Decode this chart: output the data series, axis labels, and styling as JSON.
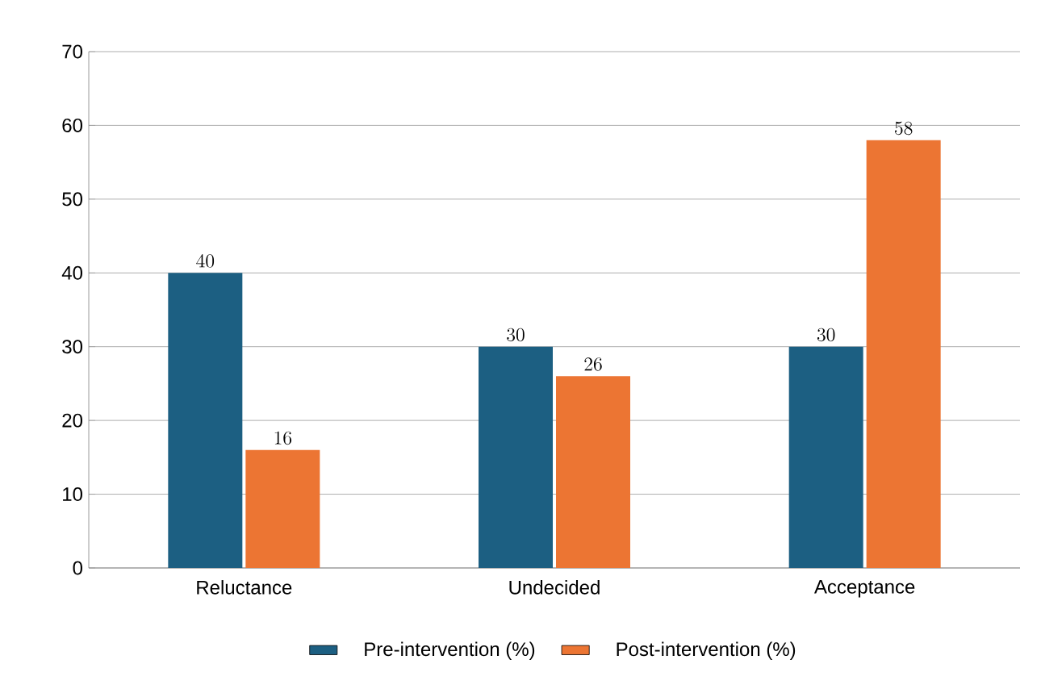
{
  "chart_data": {
    "type": "bar",
    "categories": [
      "Reluctance",
      "Undecided",
      "Acceptance"
    ],
    "series": [
      {
        "name": "Pre-intervention (%)",
        "color": "#1c5f82",
        "values": [
          40,
          30,
          30
        ]
      },
      {
        "name": "Post-intervention (%)",
        "color": "#ec7533",
        "values": [
          16,
          26,
          58
        ]
      }
    ],
    "ylim": [
      0,
      70
    ],
    "yticks": [
      0,
      10,
      20,
      30,
      40,
      50,
      60,
      70
    ],
    "grid": "y",
    "legend": "bottom",
    "data_labels": true
  }
}
